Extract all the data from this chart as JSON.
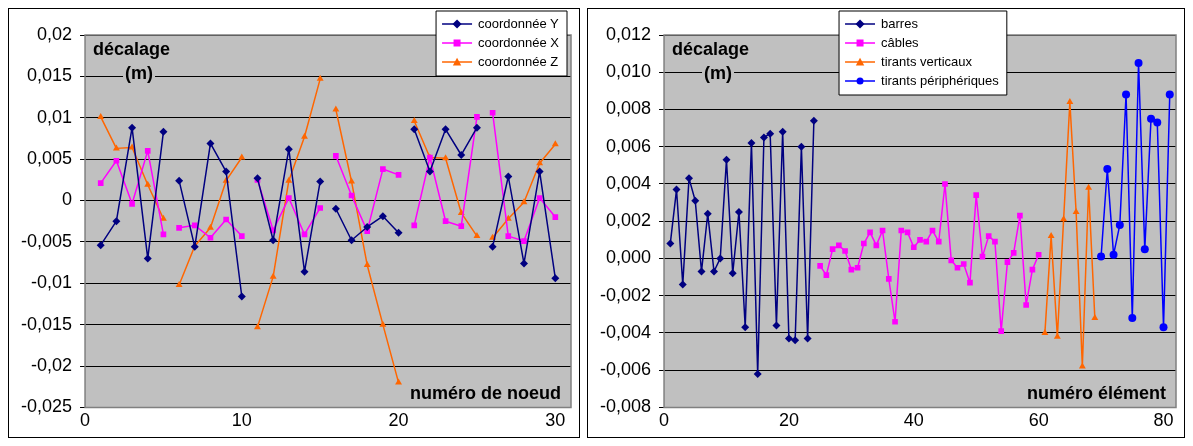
{
  "chart_data": [
    {
      "type": "line",
      "xlabel": "numéro de noeud",
      "ylabel": "décalage (m)",
      "xlim": [
        0,
        31
      ],
      "xticks": [
        0,
        10,
        20,
        30
      ],
      "ylim": [
        -0.025,
        0.02
      ],
      "yticks": [
        {
          "value": 0.02,
          "label": "0,02"
        },
        {
          "value": 0.015,
          "label": "0,015"
        },
        {
          "value": 0.01,
          "label": "0,01"
        },
        {
          "value": 0.005,
          "label": "0,005"
        },
        0,
        {
          "value": -0.005,
          "label": "-0,005"
        },
        {
          "value": -0.01,
          "label": "-0,01"
        },
        {
          "value": -0.015,
          "label": "-0,015"
        },
        {
          "value": -0.02,
          "label": "-0,02"
        },
        {
          "value": -0.025,
          "label": "-0,025"
        }
      ],
      "grid": "y",
      "legend": "top right",
      "series": [
        {
          "name": "coordonnée Y",
          "color": "#000080",
          "marker": "diamond",
          "x": [
            1,
            2,
            3,
            4,
            5
          ],
          "values": [
            -0.0054,
            -0.0025,
            0.0088,
            -0.007,
            0.0083
          ]
        },
        {
          "color": "#000080",
          "marker": "diamond",
          "x": [
            6,
            7,
            8,
            9,
            10
          ],
          "values": [
            0.0024,
            -0.0056,
            0.0069,
            0.0035,
            -0.0116
          ]
        },
        {
          "color": "#000080",
          "marker": "diamond",
          "x": [
            11,
            12,
            13,
            14,
            15
          ],
          "values": [
            0.0027,
            -0.0048,
            0.0062,
            -0.0086,
            0.0023
          ]
        },
        {
          "color": "#000080",
          "marker": "diamond",
          "x": [
            16,
            17,
            18,
            19,
            20
          ],
          "values": [
            -0.001,
            -0.0048,
            -0.0032,
            -0.0019,
            -0.0039
          ]
        },
        {
          "color": "#000080",
          "marker": "diamond",
          "x": [
            21,
            22,
            23,
            24,
            25
          ],
          "values": [
            0.0086,
            0.0035,
            0.0086,
            0.0055,
            0.0088
          ]
        },
        {
          "color": "#000080",
          "marker": "diamond",
          "x": [
            26,
            27,
            28,
            29,
            30
          ],
          "values": [
            -0.0056,
            0.0029,
            -0.0076,
            0.0035,
            -0.0094
          ]
        },
        {
          "name": "coordonnée X",
          "color": "#ff00ff",
          "marker": "square",
          "x": [
            1,
            2,
            3,
            4,
            5
          ],
          "values": [
            0.0021,
            0.0048,
            -0.0004,
            0.006,
            -0.0041
          ]
        },
        {
          "color": "#ff00ff",
          "marker": "square",
          "x": [
            6,
            7,
            8,
            9,
            10
          ],
          "values": [
            -0.0033,
            -0.003,
            -0.0045,
            -0.0023,
            -0.0043
          ]
        },
        {
          "color": "#ff00ff",
          "marker": "square",
          "x": [
            11,
            12,
            13,
            14,
            15
          ],
          "values": [
            0.0025,
            -0.0036,
            0.0003,
            -0.0041,
            -0.0009
          ]
        },
        {
          "color": "#ff00ff",
          "marker": "square",
          "x": [
            16,
            17,
            18,
            19,
            20
          ],
          "values": [
            0.0054,
            0.0006,
            -0.0037,
            0.0038,
            0.0031
          ]
        },
        {
          "color": "#ff00ff",
          "marker": "square",
          "x": [
            21,
            22,
            23,
            24,
            25
          ],
          "values": [
            -0.003,
            0.0052,
            -0.0025,
            -0.0031,
            0.0101
          ]
        },
        {
          "color": "#ff00ff",
          "marker": "square",
          "x": [
            26,
            27,
            28,
            29,
            30
          ],
          "values": [
            0.0106,
            -0.0043,
            -0.0049,
            0.0003,
            -0.002
          ]
        },
        {
          "name": "coordonnée Z",
          "color": "#ff6600",
          "marker": "triangle",
          "x": [
            1,
            2,
            3,
            4,
            5
          ],
          "values": [
            0.0101,
            0.0063,
            0.0064,
            0.0019,
            -0.0022
          ]
        },
        {
          "color": "#ff6600",
          "marker": "triangle",
          "x": [
            6,
            7,
            8,
            9,
            10
          ],
          "values": [
            -0.0102,
            -0.0055,
            -0.0033,
            0.0024,
            0.0052
          ]
        },
        {
          "color": "#ff6600",
          "marker": "triangle",
          "x": [
            11,
            12,
            13,
            14,
            15
          ],
          "values": [
            -0.0153,
            -0.0092,
            0.0024,
            0.0077,
            0.0147
          ]
        },
        {
          "color": "#ff6600",
          "marker": "triangle",
          "x": [
            16,
            17,
            18,
            19,
            20
          ],
          "values": [
            0.011,
            0.0023,
            -0.0078,
            -0.015,
            -0.022
          ]
        },
        {
          "color": "#ff6600",
          "marker": "triangle",
          "x": [
            21,
            22,
            23,
            24,
            25
          ],
          "values": [
            0.0096,
            0.0052,
            0.0051,
            -0.0015,
            -0.0043
          ]
        },
        {
          "color": "#ff6600",
          "marker": "triangle",
          "x": [
            26,
            27,
            28,
            29,
            30
          ],
          "values": [
            -0.0045,
            -0.0022,
            -0.0002,
            0.0045,
            0.0068
          ]
        }
      ]
    },
    {
      "type": "line",
      "xlabel": "numéro élément",
      "ylabel": "décalage (m)",
      "xlim": [
        0,
        82
      ],
      "xticks": [
        0,
        20,
        40,
        60,
        80
      ],
      "ylim": [
        -0.008,
        0.012
      ],
      "yticks": [
        {
          "value": 0.012,
          "label": "0,012"
        },
        {
          "value": 0.01,
          "label": "0,010"
        },
        {
          "value": 0.008,
          "label": "0,008"
        },
        {
          "value": 0.006,
          "label": "0,006"
        },
        {
          "value": 0.004,
          "label": "0,004"
        },
        {
          "value": 0.002,
          "label": "0,002"
        },
        {
          "value": 0,
          "label": "0,000"
        },
        {
          "value": -0.002,
          "label": "-0,002"
        },
        {
          "value": -0.004,
          "label": "-0,004"
        },
        {
          "value": -0.006,
          "label": "-0,006"
        },
        {
          "value": -0.008,
          "label": "-0,008"
        }
      ],
      "grid": "y",
      "legend": "top left",
      "series": [
        {
          "name": "barres",
          "color": "#000080",
          "marker": "diamond",
          "x": [
            1,
            2,
            3,
            4,
            5,
            6,
            7,
            8,
            9,
            10,
            11,
            12,
            13,
            14,
            15,
            16,
            17,
            18,
            19,
            20,
            21,
            22,
            23,
            24
          ],
          "values": [
            0.0008,
            0.0037,
            -0.0014,
            0.0043,
            0.0031,
            -0.0007,
            0.0024,
            -0.0007,
            0,
            0.0053,
            -0.0008,
            0.0025,
            -0.0037,
            0.0062,
            -0.0062,
            0.0065,
            0.0067,
            -0.0036,
            0.0068,
            -0.0043,
            -0.0044,
            0.006,
            -0.0043,
            0.0074
          ]
        },
        {
          "name": "câbles",
          "color": "#ff00ff",
          "marker": "square",
          "x": [
            25,
            26,
            27,
            28,
            29,
            30,
            31,
            32,
            33,
            34,
            35,
            36,
            37,
            38,
            39,
            40,
            41,
            42,
            43,
            44,
            45,
            46,
            47,
            48,
            49,
            50,
            51,
            52,
            53,
            54,
            55,
            56,
            57,
            58,
            59,
            60
          ],
          "values": [
            -0.0004,
            -0.0009,
            0.0005,
            0.0007,
            0.0004,
            -0.0006,
            -0.0005,
            0.0008,
            0.0014,
            0.0007,
            0.0015,
            -0.0011,
            -0.0034,
            0.0015,
            0.0014,
            0.0006,
            0.001,
            0.0009,
            0.0015,
            0.0009,
            0.004,
            -0.0001,
            -0.0005,
            -0.0003,
            -0.0013,
            0.0034,
            0.0001,
            0.0012,
            0.0009,
            -0.0039,
            -0.0002,
            0.0003,
            0.0023,
            -0.0025,
            -0.0006,
            0.0002
          ]
        },
        {
          "name": "tirants verticaux",
          "color": "#ff6600",
          "marker": "triangle",
          "x": [
            61,
            62,
            63,
            64,
            65,
            66,
            67,
            68,
            69
          ],
          "values": [
            -0.004,
            0.0012,
            -0.0042,
            0.0021,
            0.0084,
            0.0025,
            -0.0058,
            0.0038,
            -0.0032
          ]
        },
        {
          "name": "tirants périphériques",
          "color": "#0000ff",
          "marker": "circle",
          "x": [
            70,
            71,
            72,
            73,
            74,
            75,
            76,
            77,
            78,
            79,
            80,
            81
          ],
          "values": [
            0.0001,
            0.0048,
            0.0002,
            0.0018,
            0.0088,
            -0.0032,
            0.0105,
            0.0005,
            0.0075,
            0.0073,
            -0.0037,
            0.0088
          ]
        }
      ]
    }
  ]
}
